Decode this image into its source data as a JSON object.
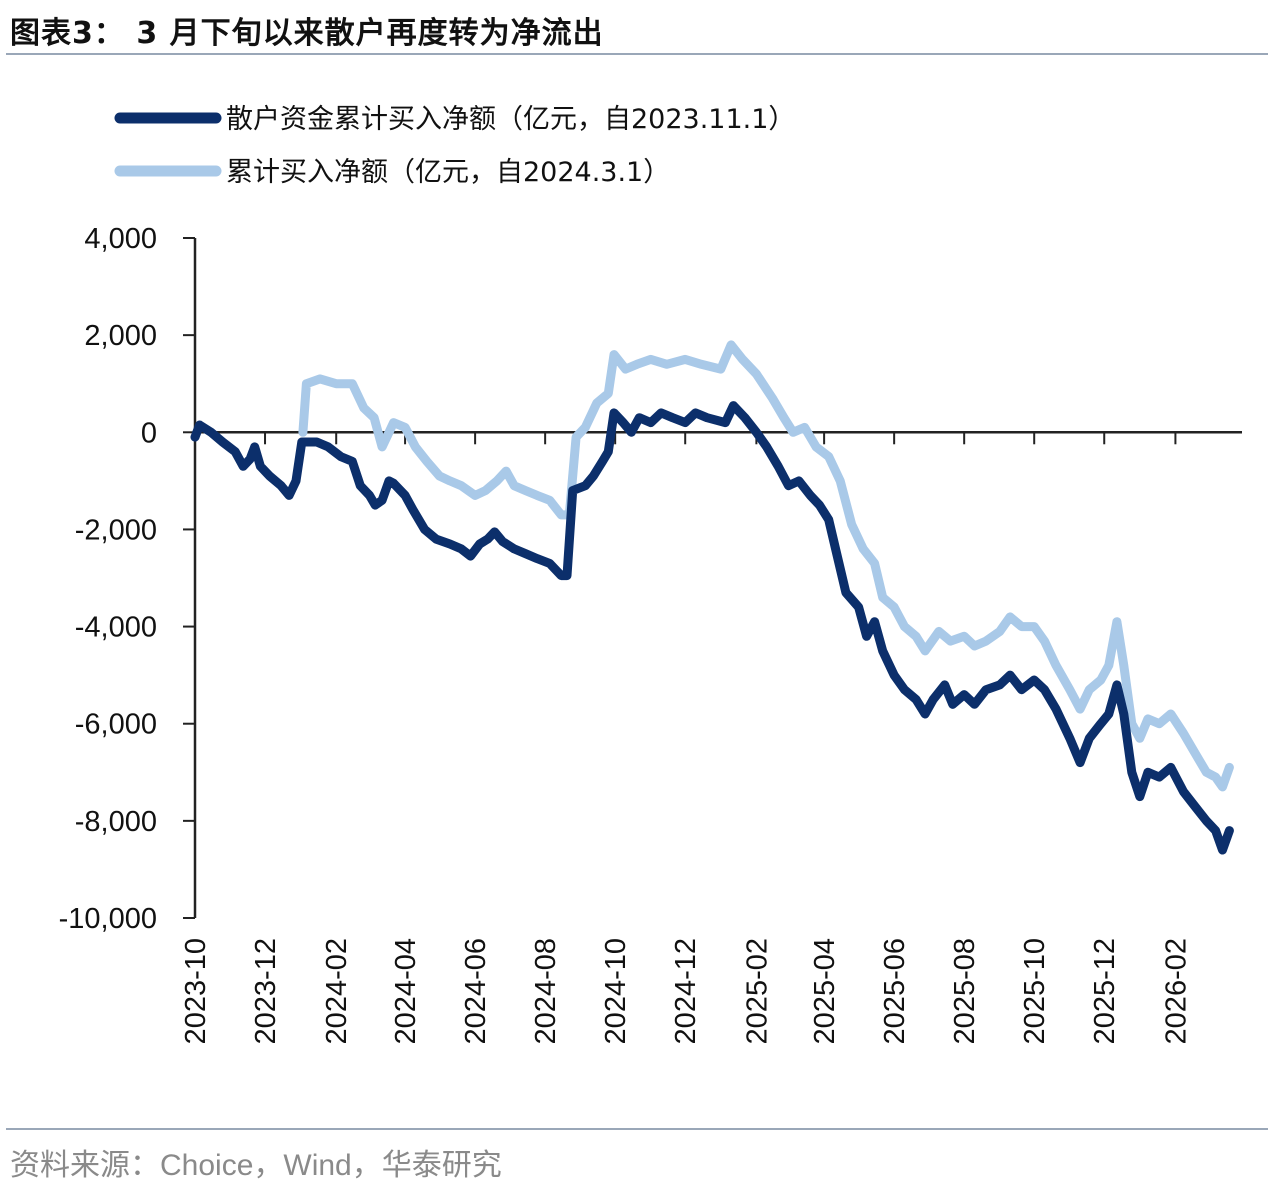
{
  "figure": {
    "title": "图表3：  3 月下旬以来散户再度转为净流出",
    "source": "资料来源：Choice，Wind，华泰研究"
  },
  "colors": {
    "series_dark": "#0c2f6b",
    "series_light": "#a9c9e8",
    "axis": "#222222",
    "rule": "#9aa7b8"
  },
  "chart_data": {
    "type": "line",
    "title": "",
    "xlabel": "",
    "ylabel": "",
    "ylim": [
      -10000,
      4000
    ],
    "yticks": [
      4000,
      2000,
      0,
      -2000,
      -4000,
      -6000,
      -8000,
      -10000
    ],
    "ytick_labels": [
      "4,000",
      "2,000",
      "0",
      "-2,000",
      "-4,000",
      "-6,000",
      "-8,000",
      "-10,000"
    ],
    "xlim": [
      "2023-10-01",
      "2026-03-31"
    ],
    "xticks": [
      "2023-10",
      "2023-12",
      "2024-02",
      "2024-04",
      "2024-06",
      "2024-08",
      "2024-10",
      "2024-12",
      "2025-02",
      "2025-04",
      "2025-06",
      "2025-08",
      "2025-10",
      "2025-12",
      "2026-02"
    ],
    "grid": false,
    "legend_position": "top-left",
    "series": [
      {
        "name": "散户资金累计买入净额（亿元，自2023.11.1）",
        "color": "#0c2f6b",
        "points": [
          [
            "2023-10-01",
            -100
          ],
          [
            "2023-10-05",
            150
          ],
          [
            "2023-10-15",
            0
          ],
          [
            "2023-10-25",
            -200
          ],
          [
            "2023-11-05",
            -400
          ],
          [
            "2023-11-12",
            -700
          ],
          [
            "2023-11-18",
            -550
          ],
          [
            "2023-11-22",
            -300
          ],
          [
            "2023-11-27",
            -700
          ],
          [
            "2023-12-05",
            -900
          ],
          [
            "2023-12-15",
            -1100
          ],
          [
            "2023-12-22",
            -1300
          ],
          [
            "2023-12-28",
            -1000
          ],
          [
            "2024-01-02",
            -200
          ],
          [
            "2024-01-15",
            -200
          ],
          [
            "2024-01-25",
            -300
          ],
          [
            "2024-02-05",
            -500
          ],
          [
            "2024-02-15",
            -600
          ],
          [
            "2024-02-22",
            -1100
          ],
          [
            "2024-03-01",
            -1300
          ],
          [
            "2024-03-06",
            -1500
          ],
          [
            "2024-03-12",
            -1400
          ],
          [
            "2024-03-18",
            -1000
          ],
          [
            "2024-03-22",
            -1050
          ],
          [
            "2024-04-01",
            -1300
          ],
          [
            "2024-04-08",
            -1600
          ],
          [
            "2024-04-18",
            -2000
          ],
          [
            "2024-04-28",
            -2200
          ],
          [
            "2024-05-10",
            -2300
          ],
          [
            "2024-05-20",
            -2400
          ],
          [
            "2024-05-28",
            -2550
          ],
          [
            "2024-06-05",
            -2300
          ],
          [
            "2024-06-12",
            -2200
          ],
          [
            "2024-06-18",
            -2050
          ],
          [
            "2024-06-25",
            -2250
          ],
          [
            "2024-07-05",
            -2400
          ],
          [
            "2024-07-15",
            -2500
          ],
          [
            "2024-07-25",
            -2600
          ],
          [
            "2024-08-05",
            -2700
          ],
          [
            "2024-08-15",
            -2950
          ],
          [
            "2024-08-20",
            -2950
          ],
          [
            "2024-08-25",
            -1200
          ],
          [
            "2024-09-05",
            -1100
          ],
          [
            "2024-09-12",
            -900
          ],
          [
            "2024-09-20",
            -600
          ],
          [
            "2024-09-25",
            -400
          ],
          [
            "2024-09-30",
            400
          ],
          [
            "2024-10-08",
            200
          ],
          [
            "2024-10-15",
            0
          ],
          [
            "2024-10-22",
            300
          ],
          [
            "2024-11-01",
            200
          ],
          [
            "2024-11-10",
            400
          ],
          [
            "2024-11-20",
            300
          ],
          [
            "2024-12-01",
            200
          ],
          [
            "2024-12-10",
            400
          ],
          [
            "2024-12-20",
            300
          ],
          [
            "2025-01-05",
            200
          ],
          [
            "2025-01-12",
            550
          ],
          [
            "2025-01-22",
            300
          ],
          [
            "2025-02-01",
            0
          ],
          [
            "2025-02-10",
            -300
          ],
          [
            "2025-02-20",
            -700
          ],
          [
            "2025-03-01",
            -1100
          ],
          [
            "2025-03-10",
            -1000
          ],
          [
            "2025-03-20",
            -1300
          ],
          [
            "2025-03-28",
            -1500
          ],
          [
            "2025-04-05",
            -1800
          ],
          [
            "2025-04-12",
            -2500
          ],
          [
            "2025-04-20",
            -3300
          ],
          [
            "2025-05-01",
            -3600
          ],
          [
            "2025-05-08",
            -4200
          ],
          [
            "2025-05-15",
            -3900
          ],
          [
            "2025-05-22",
            -4500
          ],
          [
            "2025-06-01",
            -5000
          ],
          [
            "2025-06-10",
            -5300
          ],
          [
            "2025-06-20",
            -5500
          ],
          [
            "2025-06-28",
            -5800
          ],
          [
            "2025-07-05",
            -5500
          ],
          [
            "2025-07-15",
            -5200
          ],
          [
            "2025-07-22",
            -5600
          ],
          [
            "2025-08-01",
            -5400
          ],
          [
            "2025-08-10",
            -5600
          ],
          [
            "2025-08-20",
            -5300
          ],
          [
            "2025-09-01",
            -5200
          ],
          [
            "2025-09-10",
            -5000
          ],
          [
            "2025-09-20",
            -5300
          ],
          [
            "2025-10-01",
            -5100
          ],
          [
            "2025-10-10",
            -5300
          ],
          [
            "2025-10-20",
            -5700
          ],
          [
            "2025-11-01",
            -6300
          ],
          [
            "2025-11-10",
            -6800
          ],
          [
            "2025-11-18",
            -6300
          ],
          [
            "2025-11-28",
            -6000
          ],
          [
            "2025-12-05",
            -5800
          ],
          [
            "2025-12-12",
            -5200
          ],
          [
            "2025-12-18",
            -5800
          ],
          [
            "2025-12-25",
            -7000
          ],
          [
            "2026-01-01",
            -7500
          ],
          [
            "2026-01-08",
            -7000
          ],
          [
            "2026-01-18",
            -7100
          ],
          [
            "2026-01-28",
            -6900
          ],
          [
            "2026-02-08",
            -7400
          ],
          [
            "2026-02-18",
            -7700
          ],
          [
            "2026-02-28",
            -8000
          ],
          [
            "2026-03-08",
            -8200
          ],
          [
            "2026-03-14",
            -8600
          ],
          [
            "2026-03-20",
            -8200
          ]
        ]
      },
      {
        "name": "累计买入净额（亿元，自2024.3.1）",
        "color": "#a9c9e8",
        "points": [
          [
            "2024-01-03",
            0
          ],
          [
            "2024-01-06",
            1000
          ],
          [
            "2024-01-18",
            1100
          ],
          [
            "2024-02-01",
            1000
          ],
          [
            "2024-02-15",
            1000
          ],
          [
            "2024-02-25",
            500
          ],
          [
            "2024-03-05",
            300
          ],
          [
            "2024-03-12",
            -300
          ],
          [
            "2024-03-22",
            200
          ],
          [
            "2024-04-01",
            100
          ],
          [
            "2024-04-10",
            -300
          ],
          [
            "2024-04-20",
            -600
          ],
          [
            "2024-05-01",
            -900
          ],
          [
            "2024-05-10",
            -1000
          ],
          [
            "2024-05-20",
            -1100
          ],
          [
            "2024-06-01",
            -1300
          ],
          [
            "2024-06-10",
            -1200
          ],
          [
            "2024-06-20",
            -1000
          ],
          [
            "2024-06-28",
            -800
          ],
          [
            "2024-07-05",
            -1100
          ],
          [
            "2024-07-15",
            -1200
          ],
          [
            "2024-07-25",
            -1300
          ],
          [
            "2024-08-05",
            -1400
          ],
          [
            "2024-08-15",
            -1700
          ],
          [
            "2024-08-22",
            -1700
          ],
          [
            "2024-08-28",
            -100
          ],
          [
            "2024-09-05",
            100
          ],
          [
            "2024-09-15",
            600
          ],
          [
            "2024-09-25",
            800
          ],
          [
            "2024-09-30",
            1600
          ],
          [
            "2024-10-10",
            1300
          ],
          [
            "2024-10-20",
            1400
          ],
          [
            "2024-11-01",
            1500
          ],
          [
            "2024-11-15",
            1400
          ],
          [
            "2024-12-01",
            1500
          ],
          [
            "2024-12-15",
            1400
          ],
          [
            "2025-01-01",
            1300
          ],
          [
            "2025-01-10",
            1800
          ],
          [
            "2025-01-20",
            1500
          ],
          [
            "2025-02-01",
            1200
          ],
          [
            "2025-02-15",
            700
          ],
          [
            "2025-02-25",
            300
          ],
          [
            "2025-03-05",
            0
          ],
          [
            "2025-03-15",
            100
          ],
          [
            "2025-03-25",
            -300
          ],
          [
            "2025-04-05",
            -500
          ],
          [
            "2025-04-15",
            -1000
          ],
          [
            "2025-04-25",
            -1900
          ],
          [
            "2025-05-05",
            -2400
          ],
          [
            "2025-05-15",
            -2700
          ],
          [
            "2025-05-22",
            -3400
          ],
          [
            "2025-06-01",
            -3600
          ],
          [
            "2025-06-10",
            -4000
          ],
          [
            "2025-06-20",
            -4200
          ],
          [
            "2025-06-28",
            -4500
          ],
          [
            "2025-07-10",
            -4100
          ],
          [
            "2025-07-20",
            -4300
          ],
          [
            "2025-08-01",
            -4200
          ],
          [
            "2025-08-10",
            -4400
          ],
          [
            "2025-08-20",
            -4300
          ],
          [
            "2025-09-01",
            -4100
          ],
          [
            "2025-09-10",
            -3800
          ],
          [
            "2025-09-20",
            -4000
          ],
          [
            "2025-10-01",
            -4000
          ],
          [
            "2025-10-10",
            -4300
          ],
          [
            "2025-10-20",
            -4800
          ],
          [
            "2025-11-01",
            -5300
          ],
          [
            "2025-11-10",
            -5700
          ],
          [
            "2025-11-18",
            -5300
          ],
          [
            "2025-11-28",
            -5100
          ],
          [
            "2025-12-05",
            -4800
          ],
          [
            "2025-12-12",
            -3900
          ],
          [
            "2025-12-18",
            -4800
          ],
          [
            "2025-12-25",
            -6000
          ],
          [
            "2026-01-01",
            -6300
          ],
          [
            "2026-01-08",
            -5900
          ],
          [
            "2026-01-18",
            -6000
          ],
          [
            "2026-01-28",
            -5800
          ],
          [
            "2026-02-08",
            -6200
          ],
          [
            "2026-02-18",
            -6600
          ],
          [
            "2026-02-28",
            -7000
          ],
          [
            "2026-03-08",
            -7100
          ],
          [
            "2026-03-14",
            -7300
          ],
          [
            "2026-03-20",
            -6900
          ]
        ]
      }
    ]
  }
}
